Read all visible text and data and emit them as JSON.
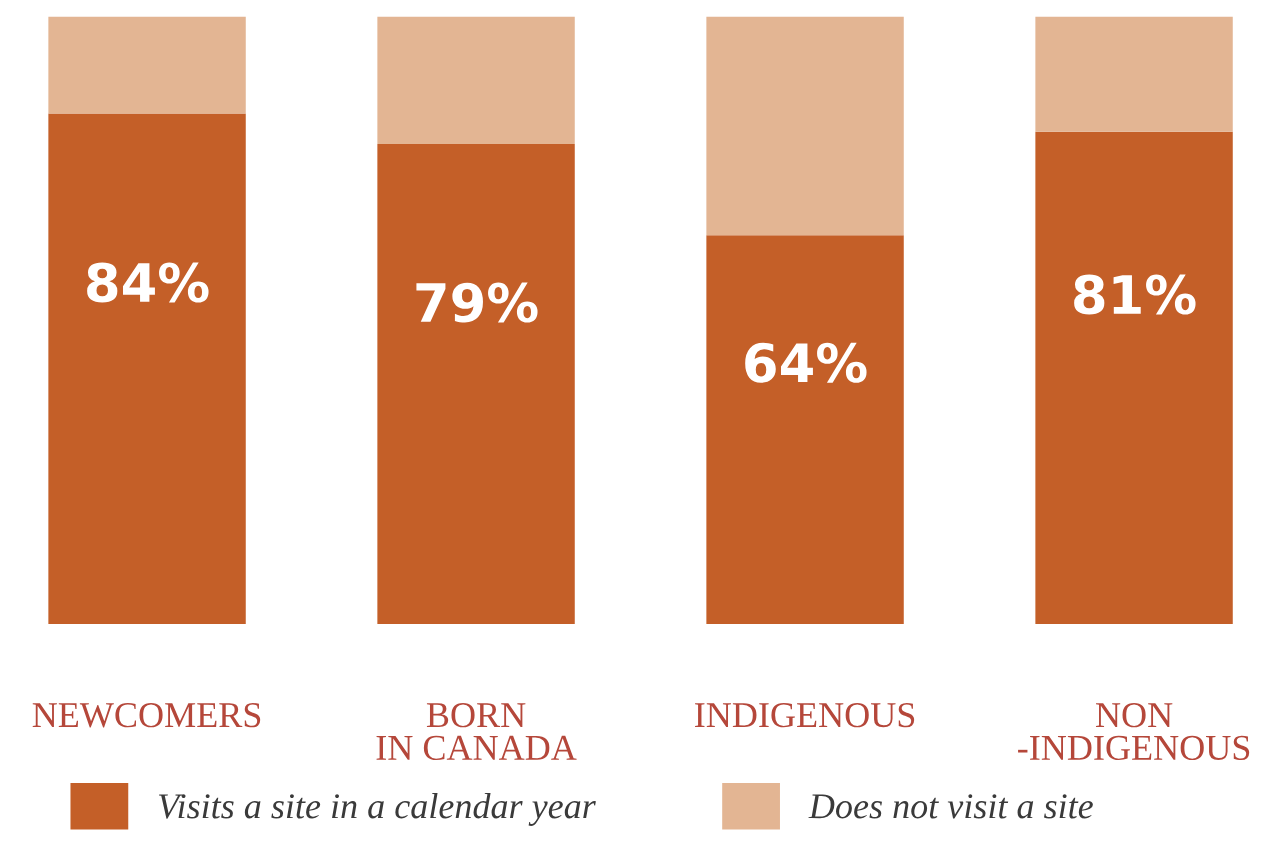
{
  "chart_data": {
    "type": "bar",
    "stacked": true,
    "categories": [
      "NEWCOMERS",
      "BORN\nIN CANADA",
      "INDIGENOUS",
      "NON\n-INDIGENOUS"
    ],
    "series": [
      {
        "name": "Visits a site in a calendar year",
        "color": "#c45f28",
        "values": [
          84,
          79,
          64,
          81
        ],
        "value_labels": [
          "84%",
          "79%",
          "64%",
          "81%"
        ]
      },
      {
        "name": "Does not visit a site",
        "color": "#e3b593",
        "values": [
          16,
          21,
          36,
          19
        ]
      }
    ],
    "ylim": [
      0,
      100
    ],
    "tick_labels": "x",
    "legend": "bottom",
    "grid": false
  }
}
